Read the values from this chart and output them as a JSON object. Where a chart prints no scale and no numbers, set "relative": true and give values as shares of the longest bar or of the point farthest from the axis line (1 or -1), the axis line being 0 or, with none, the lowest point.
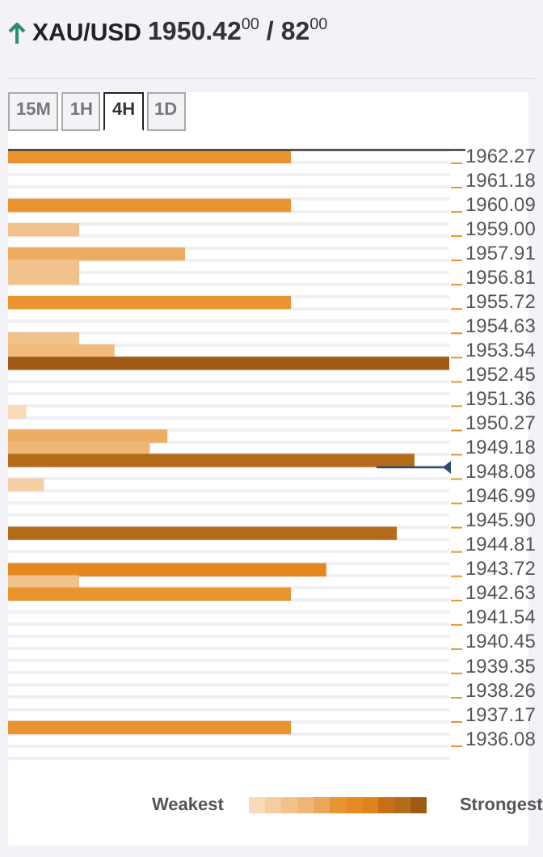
{
  "chart_data": {
    "type": "bar",
    "orientation": "horizontal",
    "relative": true,
    "grid": true,
    "title": "XAU/USD",
    "subtitle": "1950.42$^{00}$ / 82$^{00}$",
    "annotations": [
      "15M",
      "1H",
      "4H",
      "1D",
      "Weakest",
      "Strongest"
    ],
    "categories": [
      "1962.27",
      null,
      "1961.18",
      null,
      "1960.09",
      null,
      "1959.00",
      null,
      "1957.91",
      null,
      "1956.81",
      null,
      "1955.72",
      null,
      "1954.63",
      null,
      "1953.54",
      null,
      "1952.45",
      null,
      "1951.36",
      null,
      "1950.27",
      null,
      "1949.18",
      null,
      "1948.08",
      null,
      "1946.99",
      null,
      "1945.90",
      null,
      "1944.81",
      null,
      "1943.72",
      null,
      "1942.63",
      null,
      "1941.54",
      null,
      "1940.45",
      null,
      "1939.35",
      null,
      "1938.26",
      null,
      "1937.17",
      null,
      "1936.08",
      null
    ],
    "values": [
      0.64,
      null,
      null,
      null,
      0.64,
      null,
      0.16,
      null,
      0.4,
      0.16,
      0.16,
      null,
      0.64,
      null,
      null,
      0.16,
      0.24,
      1,
      null,
      null,
      null,
      0.04,
      null,
      0.36,
      0.32,
      0.92,
      null,
      0.08,
      null,
      null,
      null,
      0.88,
      null,
      null,
      0.72,
      0.16,
      0.64,
      null,
      null,
      null,
      null,
      null,
      null,
      null,
      null,
      null,
      null,
      0.64,
      null,
      null
    ],
    "colors": [
      "#e8952f",
      null,
      null,
      null,
      "#e8952f",
      null,
      "#f2c28d",
      null,
      "#edac62",
      "#f2c28d",
      "#f2c28d",
      null,
      "#e8952f",
      null,
      null,
      "#f2c28d",
      "#efba7c",
      "#9f5b14",
      null,
      null,
      null,
      "#f8dab9",
      null,
      "#edad62",
      "#efb775",
      "#b46b1a",
      null,
      "#f5d0a6",
      null,
      null,
      null,
      "#b46b1a",
      null,
      null,
      "#e3871e",
      "#f2c28d",
      "#e8952f",
      null,
      null,
      null,
      null,
      null,
      null,
      null,
      null,
      null,
      null,
      "#e8952f",
      null,
      null
    ]
  }
}
